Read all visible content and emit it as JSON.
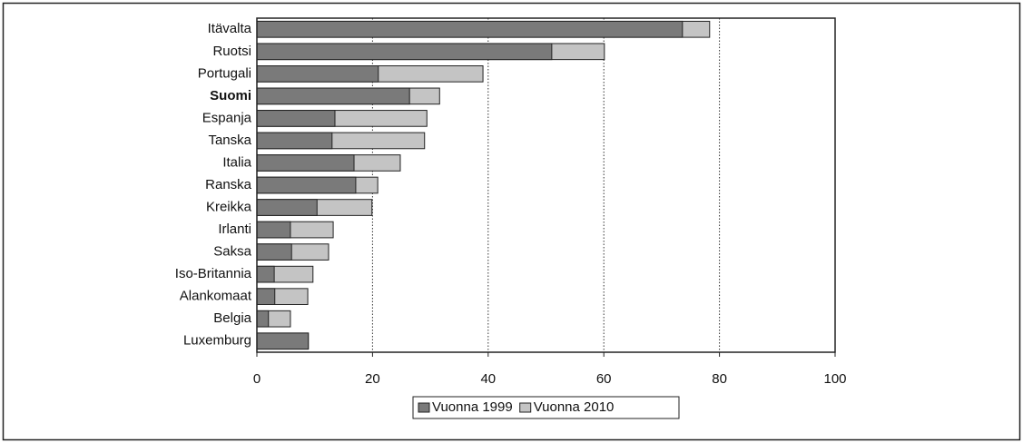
{
  "chart_data": {
    "type": "bar",
    "orientation": "horizontal",
    "overlap": true,
    "categories": [
      "Itävalta",
      "Ruotsi",
      "Portugali",
      "Suomi",
      "Espanja",
      "Tanska",
      "Italia",
      "Ranska",
      "Kreikka",
      "Irlanti",
      "Saksa",
      "Iso-Britannia",
      "Alankomaat",
      "Belgia",
      "Luxemburg"
    ],
    "series": [
      {
        "name": "Vuonna 1999",
        "color": "#7a7a7a",
        "values": [
          73.6,
          51,
          21,
          26.4,
          13.5,
          13,
          16.8,
          17.1,
          10.4,
          5.8,
          6,
          3,
          3.1,
          2,
          8.9
        ]
      },
      {
        "name": "Vuonna 2010",
        "color": "#c4c4c4",
        "values": [
          78.3,
          60.1,
          39.1,
          31.6,
          29.4,
          29,
          24.8,
          20.9,
          19.9,
          13.2,
          12.4,
          9.7,
          8.8,
          5.8,
          8.9
        ]
      }
    ],
    "xlim": [
      0,
      100
    ],
    "xticks": [
      0,
      20,
      40,
      60,
      80,
      100
    ],
    "grid": true,
    "legend": "bottom"
  }
}
